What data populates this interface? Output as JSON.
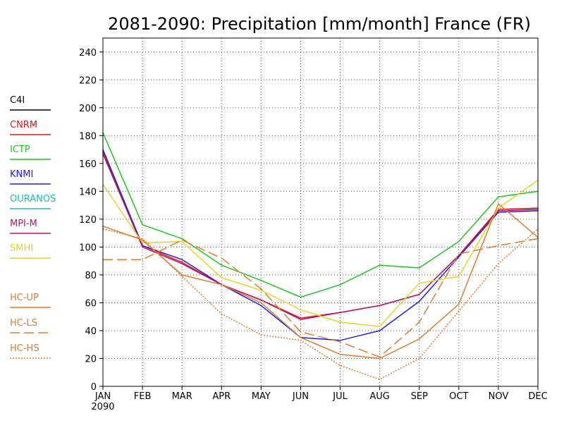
{
  "chart_data": {
    "type": "line",
    "title": "2081-2090: Precipitation [mm/month] France (FR)",
    "x_tick_labels": [
      "JAN",
      "FEB",
      "MAR",
      "APR",
      "MAY",
      "JUN",
      "JUL",
      "AUG",
      "SEP",
      "OCT",
      "NOV",
      "DEC"
    ],
    "x_year_label": "2090",
    "ylim": [
      0,
      250
    ],
    "y_ticks": [
      0,
      20,
      40,
      60,
      80,
      100,
      120,
      140,
      160,
      180,
      200,
      220,
      240
    ],
    "grid": true,
    "legend_position": "left",
    "series": [
      {
        "name": "C4I",
        "color": "#000000",
        "style": "solid",
        "values": []
      },
      {
        "name": "CNRM",
        "color": "#d7191c",
        "style": "solid",
        "values": [
          168,
          101,
          89,
          73,
          62,
          49,
          53,
          58,
          66,
          94,
          127,
          128
        ]
      },
      {
        "name": "ICTP",
        "color": "#22c322",
        "style": "solid",
        "values": [
          182,
          116,
          106,
          87,
          76,
          64,
          73,
          87,
          85,
          104,
          136,
          140
        ]
      },
      {
        "name": "KNMI",
        "color": "#2020d8",
        "style": "solid",
        "values": [
          170,
          101,
          91,
          73,
          58,
          35,
          33,
          40,
          61,
          93,
          125,
          126
        ]
      },
      {
        "name": "OURANOS",
        "color": "#1fbcbc",
        "style": "solid",
        "values": []
      },
      {
        "name": "MPI-M",
        "color": "#b8146e",
        "style": "solid",
        "values": [
          167,
          100,
          88,
          73,
          62,
          48,
          53,
          58,
          66,
          94,
          126,
          127
        ]
      },
      {
        "name": "SMHI",
        "color": "#e6d32a",
        "style": "solid",
        "values": [
          145,
          103,
          104,
          78,
          69,
          55,
          46,
          43,
          74,
          79,
          128,
          148
        ]
      },
      {
        "name": "HC-UP",
        "color": "#e07b2e",
        "style": "solid",
        "values": [
          115,
          105,
          80,
          73,
          60,
          35,
          23,
          20,
          34,
          59,
          131,
          107
        ]
      },
      {
        "name": "HC-LS",
        "color": "#e07b2e",
        "style": "dashed",
        "values": [
          91,
          91,
          105,
          92,
          70,
          39,
          32,
          21,
          46,
          95,
          101,
          106
        ]
      },
      {
        "name": "HC-HS",
        "color": "#e07b2e",
        "style": "dotted",
        "values": [
          113,
          106,
          79,
          52,
          37,
          33,
          15,
          5,
          20,
          54,
          88,
          113
        ]
      }
    ]
  }
}
